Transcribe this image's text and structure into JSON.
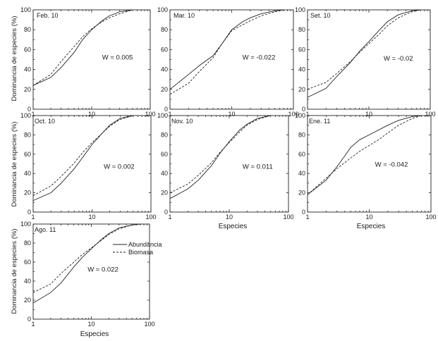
{
  "shared": {
    "ylabel": "Dominancia de especies (%)",
    "xlabel": "Especies",
    "yticks": [
      "0",
      "20",
      "40",
      "60",
      "80",
      "100"
    ],
    "xticks": [
      "1",
      "10",
      "100"
    ]
  },
  "legend": {
    "abundance": "Abundancia",
    "biomass": "Biomasa"
  },
  "chart_data": [
    {
      "type": "line",
      "label": "Feb. 10",
      "w_label": "W = 0.005",
      "x_scale": "log",
      "xlim": [
        1,
        100
      ],
      "ylim": [
        0,
        100
      ],
      "series": [
        {
          "name": "Abundancia",
          "style": "solid",
          "x": [
            1,
            2,
            3,
            5,
            7,
            10,
            15,
            20,
            30,
            50
          ],
          "y": [
            24,
            32,
            42,
            57,
            70,
            80,
            89,
            94,
            98,
            100
          ]
        },
        {
          "name": "Biomasa",
          "style": "dashed",
          "x": [
            1,
            2,
            3,
            5,
            7,
            10,
            15,
            20,
            30,
            50
          ],
          "y": [
            24,
            35,
            48,
            63,
            73,
            81,
            88,
            92,
            96,
            100
          ]
        }
      ]
    },
    {
      "type": "line",
      "label": "Mar. 10",
      "w_label": "W = -0.022",
      "x_scale": "log",
      "xlim": [
        1,
        100
      ],
      "ylim": [
        0,
        100
      ],
      "series": [
        {
          "name": "Abundancia",
          "style": "solid",
          "x": [
            1,
            2,
            3,
            5,
            7,
            10,
            15,
            20,
            30,
            50,
            70
          ],
          "y": [
            20,
            35,
            44,
            54,
            66,
            80,
            88,
            92,
            96,
            99,
            100
          ]
        },
        {
          "name": "Biomasa",
          "style": "dashed",
          "x": [
            1,
            2,
            3,
            5,
            7,
            10,
            15,
            20,
            30,
            50,
            70
          ],
          "y": [
            15,
            26,
            38,
            52,
            66,
            79,
            85,
            89,
            94,
            98,
            100
          ]
        }
      ]
    },
    {
      "type": "line",
      "label": "Set. 10",
      "w_label": "W = -0.02",
      "x_scale": "log",
      "xlim": [
        1,
        100
      ],
      "ylim": [
        0,
        100
      ],
      "series": [
        {
          "name": "Abundancia",
          "style": "solid",
          "x": [
            1,
            2,
            3,
            5,
            7,
            10,
            15,
            20,
            30,
            50,
            70
          ],
          "y": [
            12,
            21,
            33,
            47,
            58,
            68,
            80,
            88,
            95,
            99,
            100
          ]
        },
        {
          "name": "Biomasa",
          "style": "dashed",
          "x": [
            1,
            2,
            3,
            5,
            7,
            10,
            15,
            20,
            30,
            50,
            70
          ],
          "y": [
            20,
            27,
            36,
            48,
            57,
            66,
            76,
            84,
            92,
            98,
            100
          ]
        }
      ]
    },
    {
      "type": "line",
      "label": "Oct. 10",
      "w_label": "W = 0.002",
      "x_scale": "log",
      "xlim": [
        1,
        100
      ],
      "ylim": [
        0,
        100
      ],
      "series": [
        {
          "name": "Abundancia",
          "style": "solid",
          "x": [
            1,
            2,
            3,
            5,
            7,
            10,
            15,
            20,
            30,
            50
          ],
          "y": [
            12,
            20,
            30,
            45,
            57,
            70,
            82,
            90,
            97,
            100
          ]
        },
        {
          "name": "Biomasa",
          "style": "dashed",
          "x": [
            1,
            2,
            3,
            5,
            7,
            10,
            15,
            20,
            30,
            50
          ],
          "y": [
            17,
            27,
            37,
            51,
            62,
            72,
            82,
            89,
            96,
            100
          ]
        }
      ]
    },
    {
      "type": "line",
      "label": "Nov. 10",
      "w_label": "W = 0.011",
      "x_scale": "log",
      "xlim": [
        1,
        100
      ],
      "ylim": [
        0,
        100
      ],
      "series": [
        {
          "name": "Abundancia",
          "style": "solid",
          "x": [
            1,
            2,
            3,
            5,
            7,
            10,
            15,
            20,
            30,
            50
          ],
          "y": [
            14,
            24,
            33,
            48,
            61,
            73,
            85,
            91,
            97,
            100
          ]
        },
        {
          "name": "Biomasa",
          "style": "dashed",
          "x": [
            1,
            2,
            3,
            5,
            7,
            10,
            15,
            20,
            30,
            50
          ],
          "y": [
            20,
            29,
            38,
            51,
            62,
            72,
            83,
            90,
            96,
            100
          ]
        }
      ]
    },
    {
      "type": "line",
      "label": "Ene. 11",
      "w_label": "W = -0.042",
      "x_scale": "log",
      "xlim": [
        1,
        100
      ],
      "ylim": [
        0,
        100
      ],
      "series": [
        {
          "name": "Abundancia",
          "style": "solid",
          "x": [
            1,
            2,
            3,
            4,
            5,
            7,
            10,
            20,
            30,
            50,
            70
          ],
          "y": [
            18,
            33,
            47,
            58,
            67,
            75,
            80,
            90,
            95,
            99,
            100
          ]
        },
        {
          "name": "Biomasa",
          "style": "dashed",
          "x": [
            1,
            2,
            3,
            5,
            7,
            10,
            15,
            20,
            30,
            50,
            70
          ],
          "y": [
            18,
            35,
            45,
            56,
            63,
            69,
            76,
            82,
            90,
            97,
            100
          ]
        }
      ]
    },
    {
      "type": "line",
      "label": "Ago. 11",
      "w_label": "W = 0.022",
      "x_scale": "log",
      "xlim": [
        1,
        100
      ],
      "ylim": [
        0,
        100
      ],
      "series": [
        {
          "name": "Abundancia",
          "style": "solid",
          "x": [
            1,
            2,
            3,
            5,
            7,
            10,
            15,
            20,
            30,
            50,
            70
          ],
          "y": [
            17,
            28,
            38,
            55,
            65,
            74,
            84,
            90,
            96,
            99,
            100
          ]
        },
        {
          "name": "Biomasa",
          "style": "dashed",
          "x": [
            1,
            2,
            3,
            5,
            7,
            10,
            15,
            20,
            30,
            50,
            70
          ],
          "y": [
            28,
            37,
            48,
            60,
            68,
            75,
            83,
            89,
            95,
            99,
            100
          ]
        }
      ]
    }
  ]
}
